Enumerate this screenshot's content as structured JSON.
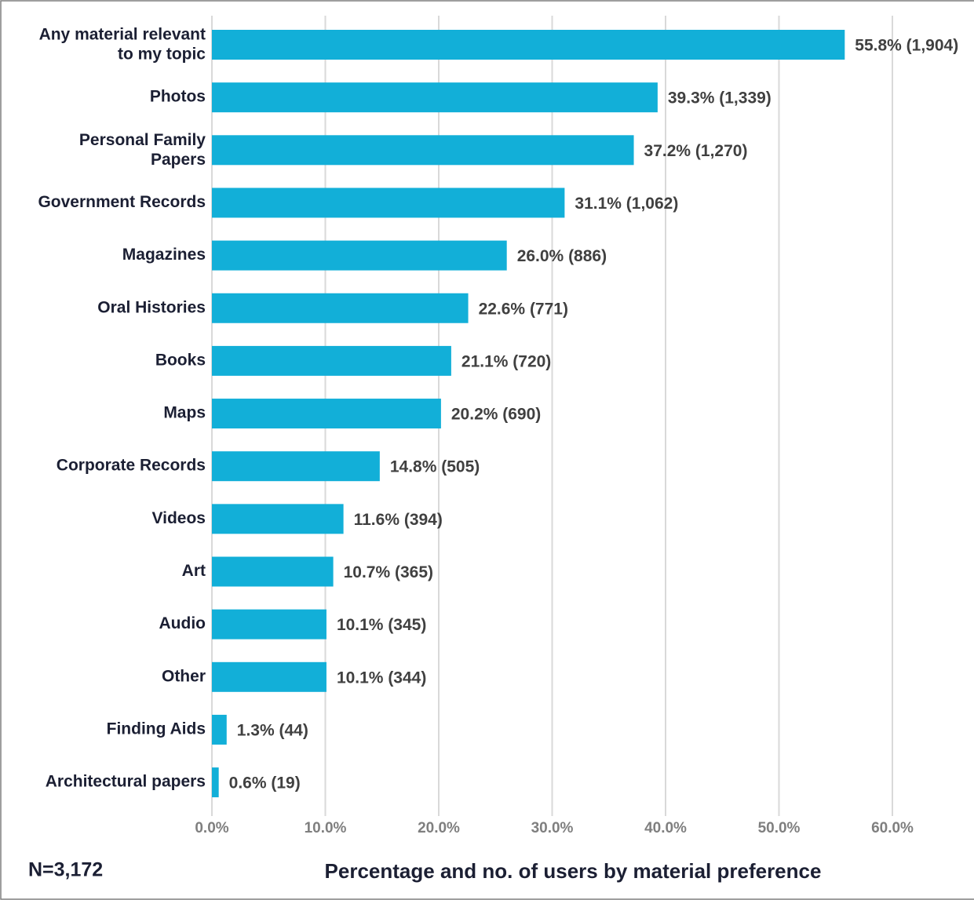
{
  "chart_data": {
    "type": "bar",
    "orientation": "horizontal",
    "categories": [
      "Any material relevant\nto my topic",
      "Photos",
      "Personal Family\nPapers",
      "Government Records",
      "Magazines",
      "Oral Histories",
      "Books",
      "Maps",
      "Corporate Records",
      "Videos",
      "Art",
      "Audio",
      "Other",
      "Finding Aids",
      "Architectural papers"
    ],
    "values": [
      55.8,
      39.3,
      37.2,
      31.1,
      26.0,
      22.6,
      21.1,
      20.2,
      14.8,
      11.6,
      10.7,
      10.1,
      10.1,
      1.3,
      0.6
    ],
    "value_labels": [
      "55.8% (1,904)",
      "39.3% (1,339)",
      "37.2% (1,270)",
      "31.1% (1,062)",
      "26.0% (886)",
      "22.6% (771)",
      "21.1% (720)",
      "20.2% (690)",
      "14.8% (505)",
      "11.6% (394)",
      "10.7% (365)",
      "10.1% (345)",
      "10.1% (344)",
      "1.3% (44)",
      "0.6% (19)"
    ],
    "color": "#12afd8",
    "xlim": [
      0,
      60
    ],
    "xticks": [
      {
        "value": 0,
        "label": "0.0%"
      },
      {
        "value": 10,
        "label": "10.0%"
      },
      {
        "value": 20,
        "label": "20.0%"
      },
      {
        "value": 30,
        "label": "30.0%"
      },
      {
        "value": 40,
        "label": "40.0%"
      },
      {
        "value": 50,
        "label": "50.0%"
      },
      {
        "value": 60,
        "label": "60.0%"
      }
    ],
    "grid": true,
    "xlabel": "Percentage and no. of users by material preference",
    "annotation": "N=3,172"
  }
}
